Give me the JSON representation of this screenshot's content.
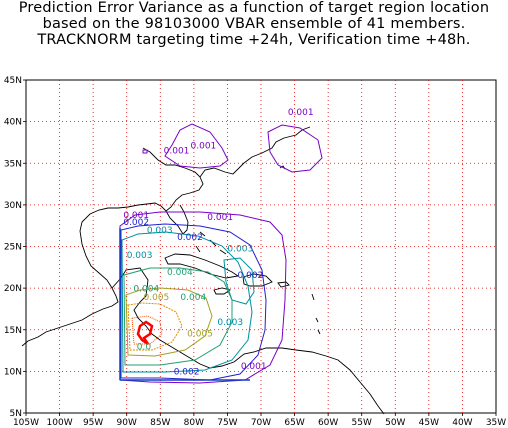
{
  "title": {
    "line1": "Prediction Error Variance as a function of target region location",
    "line2": "based on the 98103000 VBAR ensemble of 41 members.",
    "line3": "TRACKNORM targeting time +24h, Verification time +48h."
  },
  "axes": {
    "lon_labels": [
      "105W",
      "100W",
      "95W",
      "90W",
      "85W",
      "80W",
      "75W",
      "70W",
      "65W",
      "60W",
      "55W",
      "50W",
      "45W",
      "40W",
      "35W"
    ],
    "lat_labels": [
      "5N",
      "10N",
      "15N",
      "20N",
      "25N",
      "30N",
      "35N",
      "40N",
      "45N"
    ],
    "lon_range": [
      -105,
      -35
    ],
    "lat_range": [
      5,
      45
    ],
    "grid": true
  },
  "contour_labels": [
    {
      "text": "0.001",
      "lon": -66,
      "lat": 40.8,
      "color": "#7b00c8"
    },
    {
      "text": "0.001",
      "lon": -80.5,
      "lat": 36.8,
      "color": "#7b00c8"
    },
    {
      "text": "0.001",
      "lon": -84.5,
      "lat": 36.2,
      "color": "#7b00c8"
    },
    {
      "text": "0.001",
      "lon": -78,
      "lat": 28.2,
      "color": "#7b00c8"
    },
    {
      "text": "0.001",
      "lon": -90.5,
      "lat": 28.4,
      "color": "#7b00c8"
    },
    {
      "text": "0.002",
      "lon": -90.5,
      "lat": 27.6,
      "color": "#2020d0"
    },
    {
      "text": "0.002",
      "lon": -82.5,
      "lat": 25.8,
      "color": "#2020d0"
    },
    {
      "text": "0.002",
      "lon": -73.5,
      "lat": 21.2,
      "color": "#2020d0"
    },
    {
      "text": "0.003",
      "lon": -87,
      "lat": 26.6,
      "color": "#0090a0"
    },
    {
      "text": "0.003",
      "lon": -75,
      "lat": 24.4,
      "color": "#0090a0"
    },
    {
      "text": "0.003",
      "lon": -90,
      "lat": 23.6,
      "color": "#0090a0"
    },
    {
      "text": "0.003",
      "lon": -76.5,
      "lat": 15.6,
      "color": "#0090a0"
    },
    {
      "text": "0.004",
      "lon": -84,
      "lat": 21.6,
      "color": "#20a070"
    },
    {
      "text": "0.004",
      "lon": -89,
      "lat": 19.6,
      "color": "#20a070"
    },
    {
      "text": "0.004",
      "lon": -82,
      "lat": 18.6,
      "color": "#20a070"
    },
    {
      "text": "0.005",
      "lon": -87.5,
      "lat": 18.6,
      "color": "#a0a020"
    },
    {
      "text": "0.005",
      "lon": -81,
      "lat": 14.2,
      "color": "#a0a020"
    },
    {
      "text": "0.0",
      "lon": -88.5,
      "lat": 12.6,
      "color": "#20a070"
    },
    {
      "text": "0.002",
      "lon": -83,
      "lat": 9.6,
      "color": "#2020d0"
    },
    {
      "text": "0.001",
      "lon": -73,
      "lat": 10.3,
      "color": "#7b00c8"
    }
  ]
}
